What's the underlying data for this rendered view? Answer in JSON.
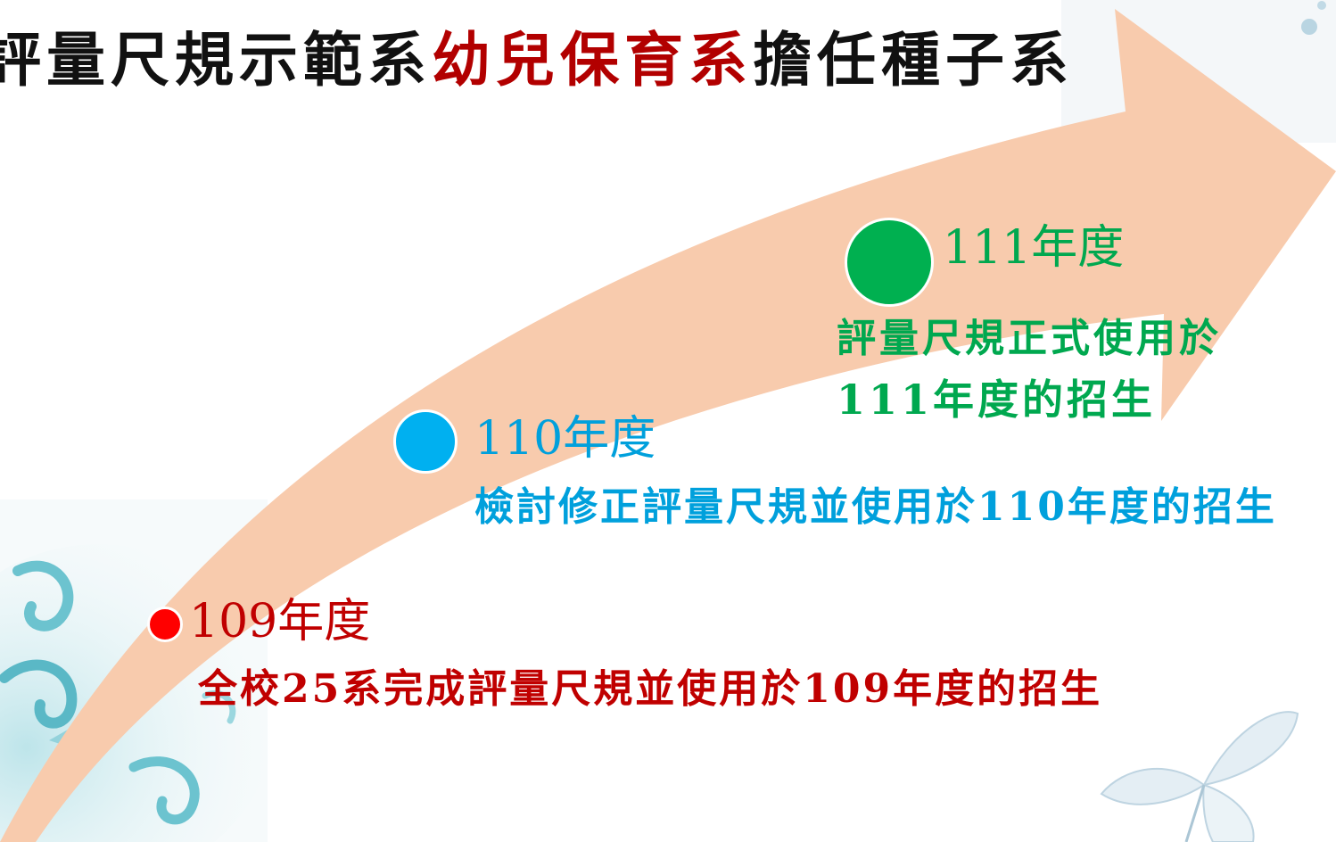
{
  "title": {
    "part1": "評量尺規示範系",
    "highlight": "幼兒保育系",
    "part2": "擔任種子系"
  },
  "milestones": [
    {
      "year": "109年度",
      "description": "全校25系完成評量尺規並使用於109年度的招生",
      "color": "#c00000",
      "dot_color": "#ff0000"
    },
    {
      "year": "110年度",
      "description": "檢討修正評量尺規並使用於110年度的招生",
      "color": "#00a0dc",
      "dot_color": "#00b0f0"
    },
    {
      "year": "111年度",
      "description_line1": "評量尺規正式使用於",
      "description_line2": "111年度的招生",
      "color": "#00a84f",
      "dot_color": "#00b050"
    }
  ],
  "colors": {
    "arrow": "#f8cbad",
    "title_highlight": "#b20000",
    "title_text": "#111111"
  }
}
